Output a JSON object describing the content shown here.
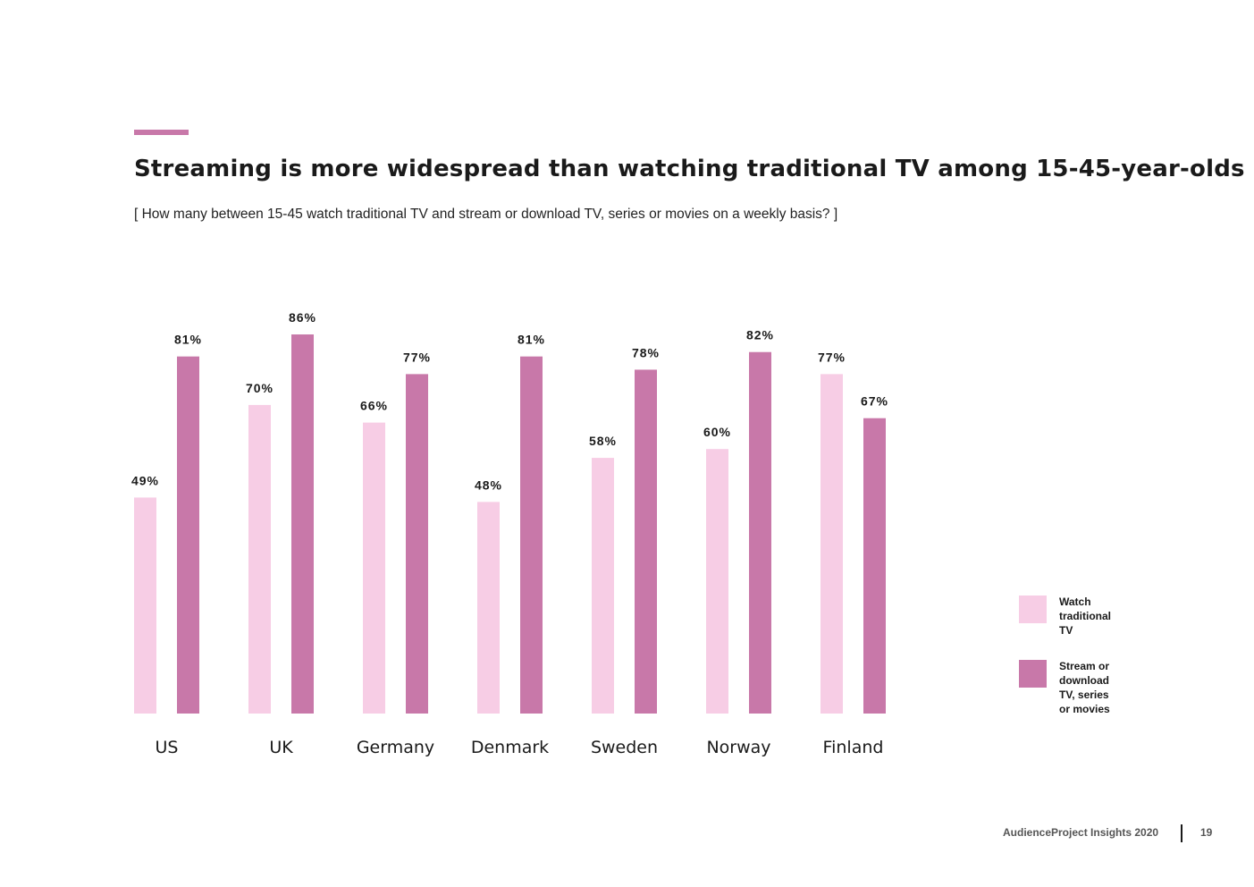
{
  "header": {
    "title": "Streaming is more widespread than watching traditional TV among 15-45-year-olds",
    "subtitle": "[ How many between 15-45 watch traditional TV and stream or download TV, series or movies on a weekly basis? ]"
  },
  "colors": {
    "accent": "#c878a9",
    "light": "#f7cde5",
    "dark": "#c878a9",
    "text": "#1a1a1a"
  },
  "chart_data": {
    "type": "bar",
    "categories": [
      "US",
      "UK",
      "Germany",
      "Denmark",
      "Sweden",
      "Norway",
      "Finland"
    ],
    "series": [
      {
        "name": "Watch traditional TV",
        "values": [
          49,
          70,
          66,
          48,
          58,
          60,
          77
        ],
        "labels": [
          "49%",
          "70%",
          "66%",
          "48%",
          "58%",
          "60%",
          "77%"
        ],
        "color": "#f7cde5"
      },
      {
        "name": "Stream or download TV, series or movies",
        "values": [
          81,
          86,
          77,
          81,
          78,
          82,
          67
        ],
        "labels": [
          "81%",
          "86%",
          "77%",
          "81%",
          "78%",
          "82%",
          "67%"
        ],
        "color": "#c878a9"
      }
    ],
    "ylim": [
      0,
      100
    ],
    "grid": false,
    "legend": "right"
  },
  "legend": {
    "items": [
      {
        "label": "Watch traditional TV",
        "color": "#f7cde5"
      },
      {
        "label": "Stream or download TV, series or movies",
        "color": "#c878a9"
      }
    ]
  },
  "footer": {
    "source": "AudienceProject Insights 2020",
    "page_number": "19"
  }
}
